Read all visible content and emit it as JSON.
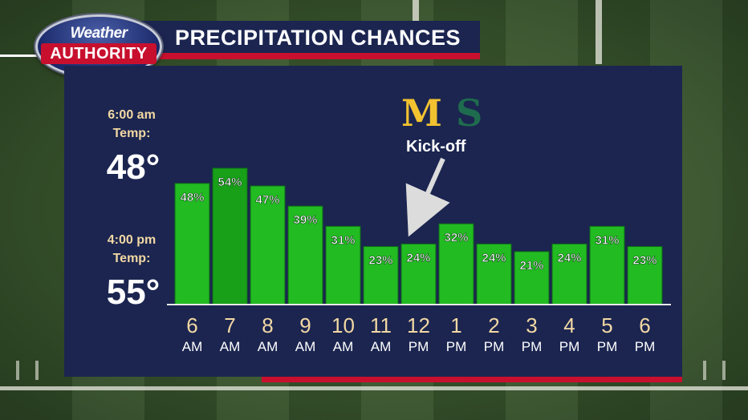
{
  "header": {
    "title": "PRECIPITATION CHANCES",
    "logo_top": "Weather",
    "logo_bottom": "AUTHORITY"
  },
  "temps": {
    "morning_label_1": "6:00 am",
    "morning_label_2": "Temp:",
    "morning_value": "48°",
    "afternoon_label_1": "4:00 pm",
    "afternoon_label_2": "Temp:",
    "afternoon_value": "55°"
  },
  "annotation": {
    "team_left": "M",
    "team_right": "S",
    "kickoff": "Kick-off",
    "kickoff_category_index": 6
  },
  "colors": {
    "bar": "#22bb22",
    "bar_highlight": "#18a018",
    "panel": "#1b2550",
    "accent_red": "#c8102e",
    "tick_hour": "#f2d8a3",
    "tick_period": "#ffffff"
  },
  "chart_data": {
    "type": "bar",
    "title": "PRECIPITATION CHANCES",
    "categories_hour": [
      "6",
      "7",
      "8",
      "9",
      "10",
      "11",
      "12",
      "1",
      "2",
      "3",
      "4",
      "5",
      "6"
    ],
    "categories_period": [
      "AM",
      "AM",
      "AM",
      "AM",
      "AM",
      "AM",
      "PM",
      "PM",
      "PM",
      "PM",
      "PM",
      "PM",
      "PM"
    ],
    "values": [
      48,
      54,
      47,
      39,
      31,
      23,
      24,
      32,
      24,
      21,
      24,
      31,
      23
    ],
    "value_suffix": "%",
    "ylim": [
      0,
      100
    ],
    "xlabel": "",
    "ylabel": "",
    "grid": false,
    "legend": "none"
  }
}
